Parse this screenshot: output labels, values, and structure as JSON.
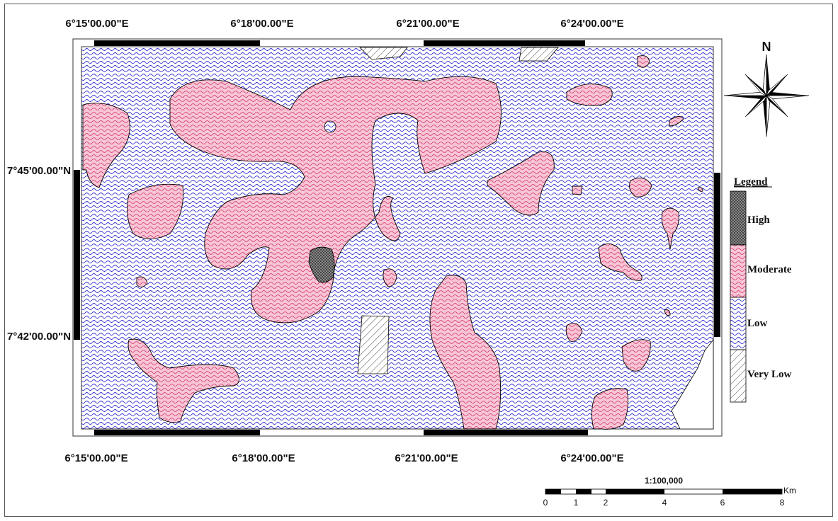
{
  "map": {
    "top_longitudes": [
      "6°15'00.00\"E",
      "6°18'00.00\"E",
      "6°21'00.00\"E",
      "6°24'00.00\"E"
    ],
    "bottom_longitudes": [
      "6°15'00.00\"E",
      "6°18'00.00\"E",
      "6°21'00.00\"E",
      "6°24'00.00\"E"
    ],
    "latitudes": [
      "7°45'00.00\"N",
      "7°42'00.00\"N"
    ]
  },
  "north_arrow": {
    "label": "N",
    "icon": "compass-rose-icon"
  },
  "legend": {
    "title": "Legend",
    "items": [
      {
        "label": "High",
        "color": "#555555",
        "pattern": "dots"
      },
      {
        "label": "Moderate",
        "color": "#f8c6d4",
        "pattern": "waves-pink"
      },
      {
        "label": "Low",
        "color": "#2a2ad0",
        "pattern": "waves-blue"
      },
      {
        "label": "Very Low",
        "color": "#ffffff",
        "pattern": "hatch"
      }
    ]
  },
  "scale_bar": {
    "ratio": "1:100,000",
    "unit": "Km",
    "ticks": [
      "0",
      "1",
      "2",
      "4",
      "6",
      "8"
    ]
  },
  "colors": {
    "low_line": "#2a2ad0",
    "moderate_fill": "#f8c6d4",
    "moderate_line": "#d03070"
  }
}
